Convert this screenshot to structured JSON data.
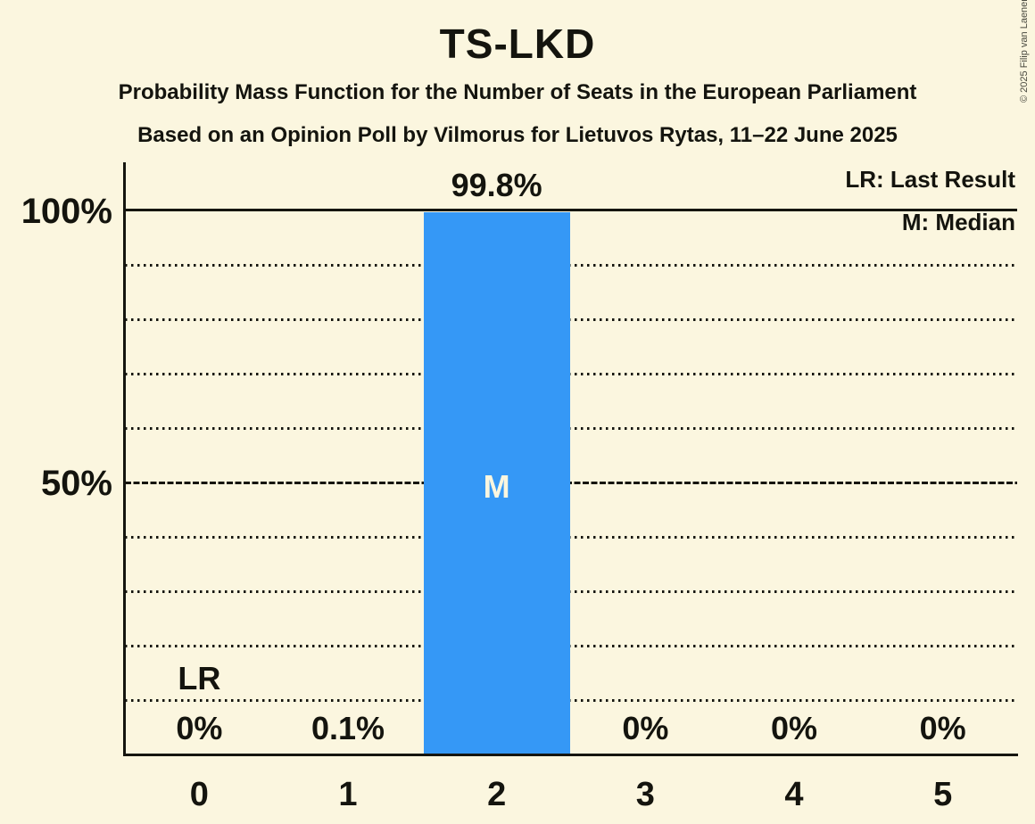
{
  "header": {
    "title": "TS-LKD",
    "subtitle1": "Probability Mass Function for the Number of Seats in the European Parliament",
    "subtitle2": "Based on an Opinion Poll by Vilmorus for Lietuvos Rytas, 11–22 June 2025"
  },
  "copyright": "© 2025 Filip van Laenen",
  "legend": {
    "last_result": "LR: Last Result",
    "median": "M: Median"
  },
  "colors": {
    "background": "#FBF6DF",
    "bar": "#3598F6",
    "text": "#14140E",
    "muted_text": "#4A4A40"
  },
  "chart_data": {
    "type": "bar",
    "title": "TS-LKD",
    "categories": [
      "0",
      "1",
      "2",
      "3",
      "4",
      "5"
    ],
    "values": [
      0,
      0.1,
      99.8,
      0,
      0,
      0
    ],
    "value_labels": [
      "0%",
      "0.1%",
      "99.8%",
      "0%",
      "0%",
      "0%"
    ],
    "yticks": [
      {
        "label": "100%",
        "value": 100
      },
      {
        "label": "50%",
        "value": 50
      }
    ],
    "ylim": [
      0,
      100
    ],
    "grid": "dotted horizontal lines every 10%, dashed line at 50%, solid line at 100%",
    "legend_position": "top-right",
    "median_index": 2,
    "median_marker": "M",
    "last_result_index": 0,
    "last_result_marker": "LR"
  }
}
